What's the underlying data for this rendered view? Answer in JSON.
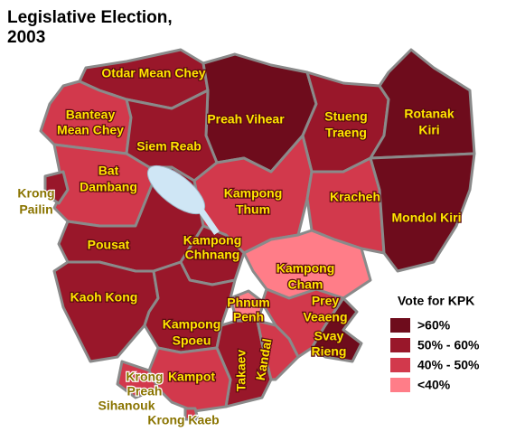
{
  "title": [
    "Legislative Election,",
    "2003"
  ],
  "legend": {
    "title": "Vote for KPK",
    "items": [
      {
        "label": ">60%",
        "color": "#6e0c1c"
      },
      {
        "label": "50% - 60%",
        "color": "#99172a"
      },
      {
        "label": "40% - 50%",
        "color": "#d2394c"
      },
      {
        "label": "<40%",
        "color": "#ff7d88"
      }
    ]
  },
  "provinces": [
    {
      "label": [
        "Otdar Mean Chey"
      ],
      "category": 1
    },
    {
      "label": [
        "Banteay",
        "Mean Chey"
      ],
      "category": 2
    },
    {
      "label": [
        "Preah Vihear"
      ],
      "category": 0
    },
    {
      "label": [
        "Stueng",
        "Traeng"
      ],
      "category": 1
    },
    {
      "label": [
        "Rotanak",
        "Kiri"
      ],
      "category": 0
    },
    {
      "label": [
        "Siem Reab"
      ],
      "category": 1
    },
    {
      "label": [
        "Bat",
        "Dambang"
      ],
      "category": 2
    },
    {
      "label": [
        "Krong",
        "Pailin"
      ],
      "category": 1
    },
    {
      "label": [
        "Kampong",
        "Thum"
      ],
      "category": 2
    },
    {
      "label": [
        "Kracheh"
      ],
      "category": 2
    },
    {
      "label": [
        "Mondol Kiri"
      ],
      "category": 0
    },
    {
      "label": [
        "Pousat"
      ],
      "category": 1
    },
    {
      "label": [
        "Kampong",
        "Chhnang"
      ],
      "category": 1
    },
    {
      "label": [
        "Kampong",
        "Cham"
      ],
      "category": 3
    },
    {
      "label": [
        "Kaoh Kong"
      ],
      "category": 1
    },
    {
      "label": [
        "Kampong",
        "Spoeu"
      ],
      "category": 1
    },
    {
      "label": [
        "Phnum",
        "Penh"
      ],
      "category": 3
    },
    {
      "label": [
        "Prey",
        "Veaeng"
      ],
      "category": 2
    },
    {
      "label": [
        "Svay",
        "Rieng"
      ],
      "category": 0
    },
    {
      "label": [
        "Takaev"
      ],
      "category": 1
    },
    {
      "label": [
        "Kandal"
      ],
      "category": 2
    },
    {
      "label": [
        "Kampot"
      ],
      "category": 2
    },
    {
      "label": [
        "Krong",
        "Preah",
        "Sihanouk"
      ],
      "category": 2
    },
    {
      "label": [
        "Krong Kaeb"
      ],
      "category": 2
    }
  ]
}
